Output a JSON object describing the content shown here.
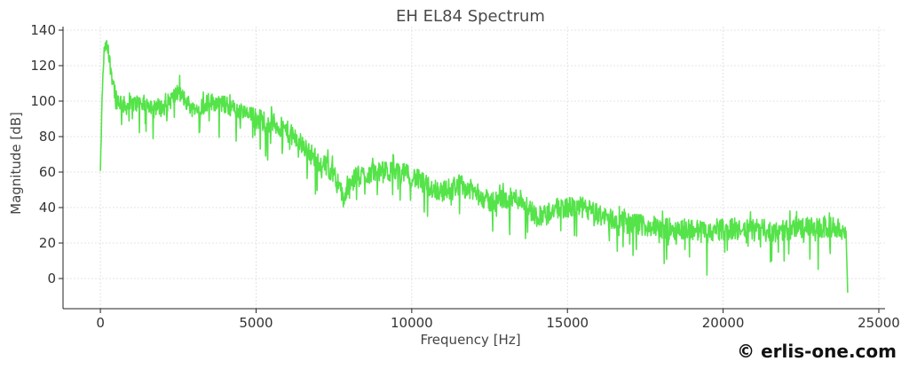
{
  "chart_data": {
    "type": "line",
    "title": "EH EL84 Spectrum",
    "xlabel": "Frequency [Hz]",
    "ylabel": "Magnitude [dB]",
    "xlim": [
      -1200,
      25200
    ],
    "ylim": [
      -17,
      142
    ],
    "xticks": [
      0,
      5000,
      10000,
      15000,
      20000,
      25000
    ],
    "yticks": [
      0,
      20,
      40,
      60,
      80,
      100,
      120,
      140
    ],
    "grid": true,
    "line_color": "#55e34a",
    "series": [
      {
        "x": [
          0,
          60,
          120,
          200,
          300,
          500,
          800,
          1200,
          1600,
          2000,
          2500,
          3000,
          3500,
          4000,
          4500,
          5000,
          5500,
          6000,
          6500,
          7000,
          7500,
          7800,
          8200,
          8800,
          9500,
          10000,
          10500,
          11000,
          11500,
          12000,
          12500,
          13000,
          13500,
          14000,
          14300,
          14800,
          15500,
          16000,
          16500,
          17000,
          17500,
          18000,
          18500,
          19000,
          19500,
          20000,
          20500,
          21000,
          21500,
          22000,
          22500,
          23000,
          23500,
          23800,
          23950,
          24000
        ],
        "y": [
          60,
          105,
          128,
          132,
          122,
          102,
          97,
          99,
          98,
          96,
          105,
          95,
          100,
          98,
          94,
          90,
          88,
          83,
          75,
          66,
          60,
          45,
          57,
          60,
          60,
          58,
          52,
          49,
          53,
          49,
          43,
          45,
          45,
          35,
          37,
          40,
          40,
          36,
          33,
          31,
          30,
          28,
          28,
          28,
          26,
          28,
          27,
          28,
          27,
          27,
          29,
          28,
          29,
          28,
          25,
          -8
        ],
        "spike_amplitude": [
          4,
          6,
          6,
          6,
          10,
          12,
          10,
          10,
          10,
          10,
          10,
          10,
          10,
          10,
          10,
          12,
          12,
          12,
          12,
          12,
          12,
          12,
          12,
          12,
          12,
          12,
          12,
          12,
          12,
          12,
          12,
          12,
          12,
          12,
          12,
          12,
          12,
          12,
          12,
          12,
          12,
          12,
          12,
          12,
          12,
          12,
          12,
          12,
          12,
          12,
          12,
          12,
          12,
          10,
          6,
          0
        ]
      }
    ]
  },
  "watermark": "© erlis-one.com"
}
